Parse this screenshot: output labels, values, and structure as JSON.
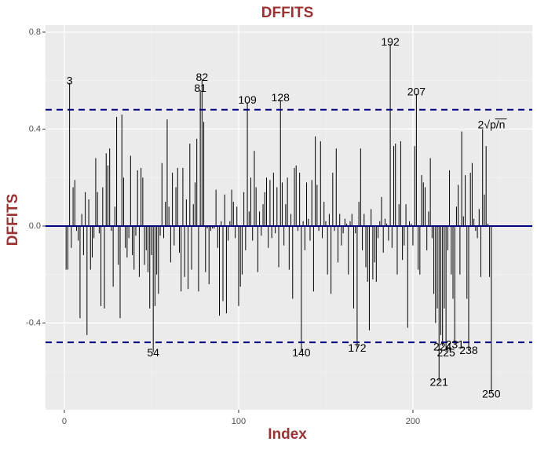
{
  "chart_data": {
    "type": "needle",
    "title": "DFFITS",
    "x_label": "Index",
    "y_label": "DFFITS",
    "xlim": [
      -10.8,
      268.5
    ],
    "ylim": [
      -0.758,
      0.829
    ],
    "xticks": [
      0,
      100,
      200
    ],
    "yticks": [
      -0.4,
      {
        "value": 0,
        "label": "0.0"
      },
      0.4,
      0.8
    ],
    "grid": true,
    "color": "#000000",
    "reference_line": {
      "value": 0,
      "color": "#000080"
    },
    "threshold": {
      "value": 0.48,
      "color": "#000080",
      "label": "2√p/n"
    },
    "x": [
      1,
      2,
      3,
      4,
      5,
      6,
      7,
      8,
      9,
      10,
      11,
      12,
      13,
      14,
      15,
      16,
      17,
      18,
      19,
      20,
      21,
      22,
      23,
      24,
      25,
      26,
      27,
      28,
      29,
      30,
      31,
      32,
      33,
      34,
      35,
      36,
      37,
      38,
      39,
      40,
      41,
      42,
      43,
      44,
      45,
      46,
      47,
      48,
      49,
      50,
      51,
      52,
      53,
      54,
      55,
      56,
      57,
      58,
      59,
      60,
      61,
      62,
      63,
      64,
      65,
      66,
      67,
      68,
      69,
      70,
      71,
      72,
      73,
      74,
      75,
      76,
      77,
      78,
      79,
      80,
      81,
      82,
      83,
      84,
      85,
      86,
      87,
      88,
      89,
      90,
      91,
      92,
      93,
      94,
      95,
      96,
      97,
      98,
      99,
      100,
      101,
      102,
      103,
      104,
      105,
      106,
      107,
      108,
      109,
      110,
      111,
      112,
      113,
      114,
      115,
      116,
      117,
      118,
      119,
      120,
      121,
      122,
      123,
      124,
      125,
      126,
      127,
      128,
      129,
      130,
      131,
      132,
      133,
      134,
      135,
      136,
      137,
      138,
      139,
      140,
      141,
      142,
      143,
      144,
      145,
      146,
      147,
      148,
      149,
      150,
      151,
      152,
      153,
      154,
      155,
      156,
      157,
      158,
      159,
      160,
      161,
      162,
      163,
      164,
      165,
      166,
      167,
      168,
      169,
      170,
      171,
      172,
      173,
      174,
      175,
      176,
      177,
      178,
      179,
      180,
      181,
      182,
      183,
      184,
      185,
      186,
      187,
      188,
      189,
      190,
      191,
      192,
      193,
      194,
      195,
      196,
      197,
      198,
      199,
      200,
      201,
      202,
      203,
      204,
      205,
      206,
      207,
      208,
      209,
      210,
      211,
      212,
      213,
      214,
      215,
      216,
      217,
      218,
      219,
      220,
      221,
      222,
      223,
      224,
      225,
      226,
      227,
      228,
      229,
      230,
      231,
      232,
      233,
      234,
      235,
      236,
      237,
      238,
      239,
      240,
      241,
      242,
      243,
      244,
      245
    ],
    "values": [
      -0.18,
      -0.18,
      0.59,
      -0.09,
      0.16,
      0.19,
      -0.02,
      -0.06,
      -0.38,
      0.05,
      -0.12,
      0.14,
      -0.45,
      0.11,
      -0.18,
      -0.13,
      -0.05,
      0.28,
      0.14,
      -0.03,
      -0.33,
      0.16,
      -0.34,
      0.3,
      0.25,
      0.32,
      -0.02,
      -0.25,
      0.08,
      0.45,
      -0.16,
      -0.38,
      0.46,
      0.2,
      -0.09,
      -0.13,
      -0.05,
      0.29,
      -0.12,
      -0.18,
      -0.04,
      0.23,
      -0.21,
      0.24,
      0.2,
      -0.16,
      -0.1,
      -0.19,
      -0.34,
      -0.12,
      -0.52,
      -0.33,
      -0.2,
      -0.28,
      -0.04,
      0.26,
      -0.05,
      0.1,
      0.44,
      0.08,
      -0.15,
      0.22,
      -0.08,
      0.16,
      0.24,
      -0.11,
      -0.27,
      0.24,
      -0.21,
      0.11,
      -0.26,
      0.34,
      -0.18,
      0.09,
      0.18,
      0.36,
      -0.27,
      0.56,
      0.605,
      0.43,
      -0.19,
      -0.01,
      -0.24,
      -0.02,
      -0.01,
      -0.01,
      0.15,
      -0.09,
      -0.37,
      0.02,
      -0.31,
      0.13,
      -0.36,
      -0.06,
      0.02,
      0.15,
      0.1,
      -0.05,
      0.08,
      -0.33,
      -0.25,
      -0.2,
      0.14,
      -0.1,
      0.51,
      0.06,
      0.2,
      -0.06,
      0.31,
      0.16,
      -0.19,
      0.06,
      -0.04,
      0.09,
      0.14,
      0.2,
      -0.09,
      0.19,
      -0.05,
      0.22,
      -0.03,
      0.16,
      -0.17,
      0.52,
      0.18,
      -0.08,
      0.09,
      0.2,
      -0.18,
      0.05,
      -0.3,
      0.24,
      0.25,
      -0.02,
      0.22,
      -0.52,
      0.02,
      -0.1,
      0.18,
      0.03,
      -0.06,
      0.19,
      -0.27,
      0.37,
      0.17,
      -0.02,
      0.35,
      -0.05,
      0.1,
      0.02,
      -0.2,
      0.05,
      -0.28,
      0.22,
      -0.02,
      0.32,
      -0.15,
      0.05,
      -0.08,
      -0.03,
      0.03,
      0.01,
      -0.2,
      0.02,
      0.05,
      -0.34,
      -0.03,
      -0.5,
      0.1,
      0.32,
      -0.1,
      0.05,
      -0.17,
      -0.23,
      -0.43,
      0.07,
      -0.22,
      -0.15,
      -0.23,
      -0.05,
      0.02,
      0.12,
      -0.11,
      0.03,
      0.01,
      -0.06,
      0.75,
      -0.09,
      0.33,
      0.34,
      -0.2,
      0.09,
      0.35,
      -0.14,
      -0.08,
      0.09,
      -0.42,
      0.02,
      0.01,
      -0.08,
      0.33,
      0.545,
      -0.18,
      -0.2,
      0.21,
      0.18,
      0.16,
      -0.1,
      0.06,
      0.28,
      -0.05,
      -0.28,
      -0.4,
      -0.34,
      -0.64,
      -0.45,
      -0.495,
      -0.34,
      -0.52,
      -0.1,
      0.23,
      -0.2,
      -0.3,
      -0.485,
      0.08,
      0.17,
      -0.2,
      0.39,
      0.04,
      0.21,
      -0.3,
      -0.51,
      0.22,
      0.26,
      0.03,
      -0.02,
      -0.05,
      0.07,
      -0.21,
      0.4,
      0.13,
      0.33,
      0.01,
      -0.21,
      -0.69
    ],
    "point_labels": [
      {
        "text": "3",
        "x": 3
      },
      {
        "text": "54",
        "x": 51
      },
      {
        "text": "81",
        "x": 78
      },
      {
        "text": "82",
        "x": 79
      },
      {
        "text": "109",
        "x": 105
      },
      {
        "text": "128",
        "x": 124
      },
      {
        "text": "140",
        "x": 136
      },
      {
        "text": "172",
        "x": 168
      },
      {
        "text": "192",
        "x": 187
      },
      {
        "text": "207",
        "x": 202
      },
      {
        "text": "221",
        "x": 215
      },
      {
        "text": "224",
        "x": 217
      },
      {
        "text": "225",
        "x": 219
      },
      {
        "text": "231",
        "x": 224
      },
      {
        "text": "238",
        "x": 232
      },
      {
        "text": "250",
        "x": 245
      }
    ]
  }
}
